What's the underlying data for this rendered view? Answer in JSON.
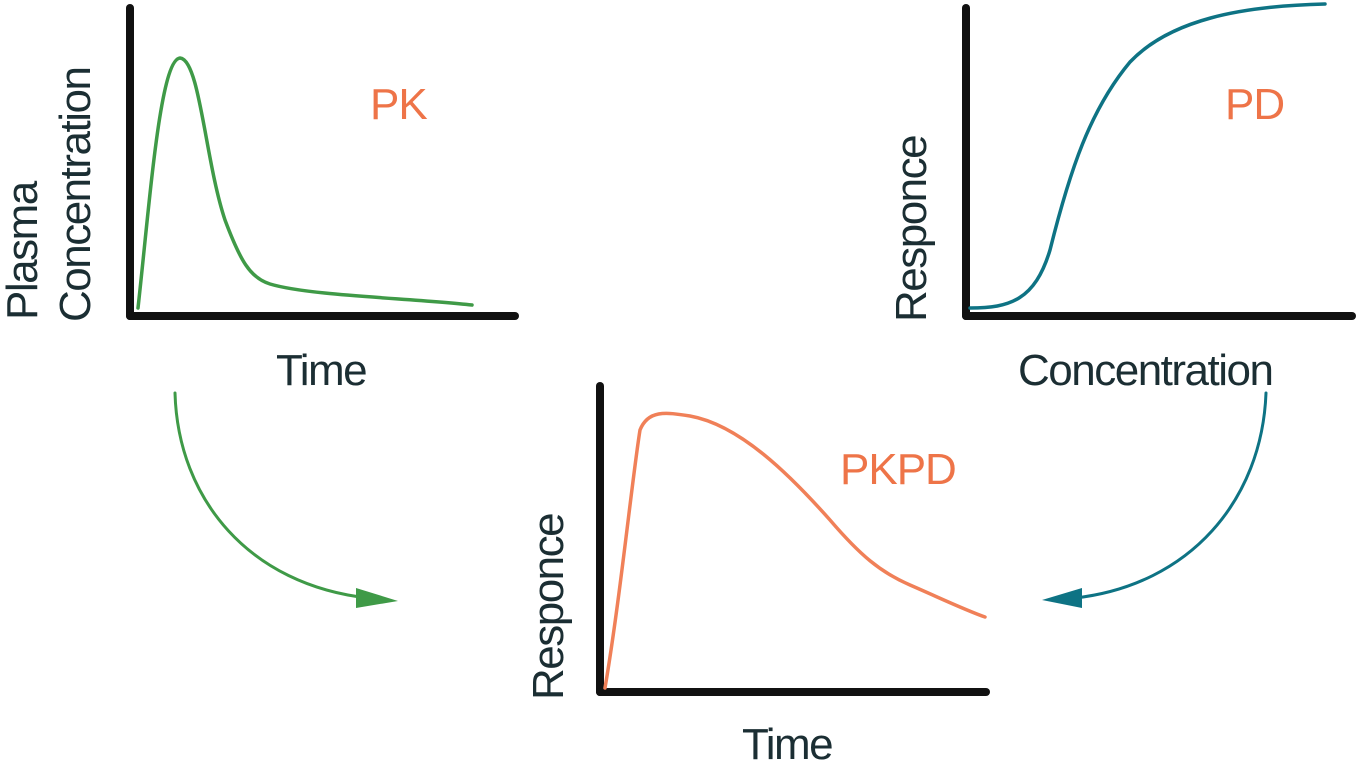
{
  "colors": {
    "pk_curve": "#3f9a47",
    "pd_curve": "#0e7384",
    "pkpd_curve": "#f08058",
    "tag_text": "#ee7448",
    "axis": "#111111",
    "label_text": "#1b2e33"
  },
  "pk": {
    "tag": "PK",
    "y_label_line1": "Plasma",
    "y_label_line2": "Concentration",
    "x_label": "Time"
  },
  "pd": {
    "tag": "PD",
    "y_label": "Responce",
    "x_label": "Concentration"
  },
  "pkpd": {
    "tag": "PKPD",
    "y_label": "Responce",
    "x_label": "Time"
  },
  "arrows": {
    "left": "green-curved-arrow",
    "right": "teal-curved-arrow"
  }
}
